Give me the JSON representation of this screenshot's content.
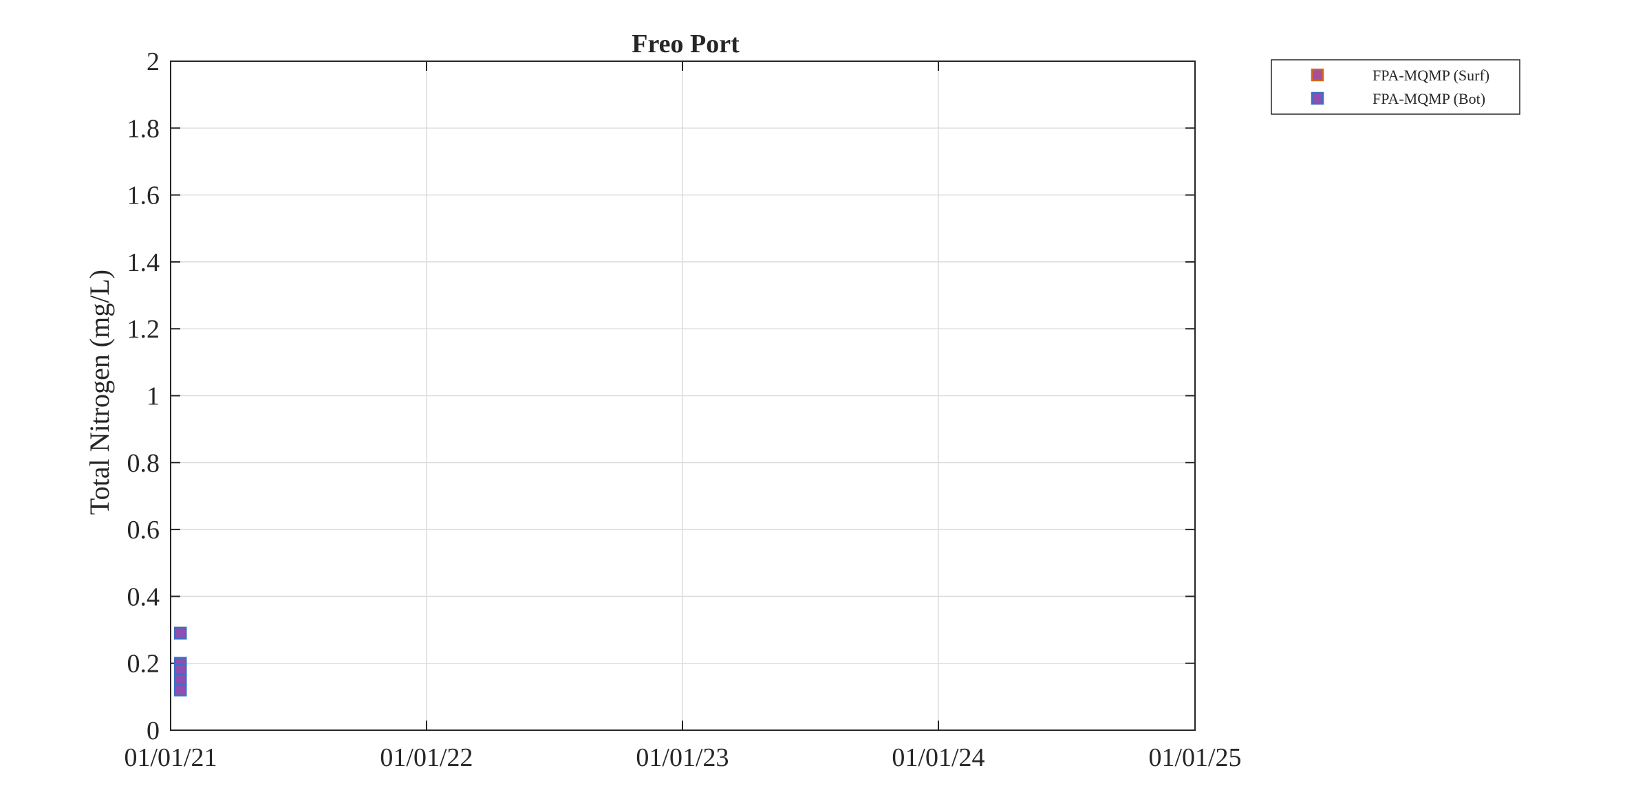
{
  "chart_data": {
    "type": "scatter",
    "title": "Freo Port",
    "xlabel": "",
    "ylabel": "Total Nitrogen (mg/L)",
    "x_axis": {
      "type": "date",
      "range": [
        "2021-01-01",
        "2025-01-01"
      ],
      "ticks": [
        "2021-01-01",
        "2022-01-01",
        "2023-01-01",
        "2024-01-01",
        "2025-01-01"
      ],
      "tick_labels": [
        "01/01/21",
        "01/01/22",
        "01/01/23",
        "01/01/24",
        "01/01/25"
      ]
    },
    "y_axis": {
      "range": [
        0,
        2
      ],
      "ticks": [
        0,
        0.2,
        0.4,
        0.6,
        0.8,
        1,
        1.2,
        1.4,
        1.6,
        1.8,
        2
      ],
      "tick_labels": [
        "0",
        "0.2",
        "0.4",
        "0.6",
        "0.8",
        "1",
        "1.2",
        "1.4",
        "1.6",
        "1.8",
        "2"
      ]
    },
    "grid": true,
    "legend_position": "outside-top-right",
    "series": [
      {
        "name": "FPA-MQMP (Surf)",
        "marker": "square",
        "fill": "#a5509a",
        "edge": "#d2691e",
        "points": [
          {
            "x": "2021-01-15",
            "y": 0.29
          },
          {
            "x": "2021-01-15",
            "y": 0.19
          },
          {
            "x": "2021-01-15",
            "y": 0.15
          }
        ]
      },
      {
        "name": "FPA-MQMP (Bot)",
        "marker": "square",
        "fill": "#8e4fb0",
        "edge": "#3d6fc4",
        "points": [
          {
            "x": "2021-01-15",
            "y": 0.29
          },
          {
            "x": "2021-01-15",
            "y": 0.2
          },
          {
            "x": "2021-01-15",
            "y": 0.18
          },
          {
            "x": "2021-01-15",
            "y": 0.15
          },
          {
            "x": "2021-01-15",
            "y": 0.12
          }
        ]
      }
    ]
  }
}
